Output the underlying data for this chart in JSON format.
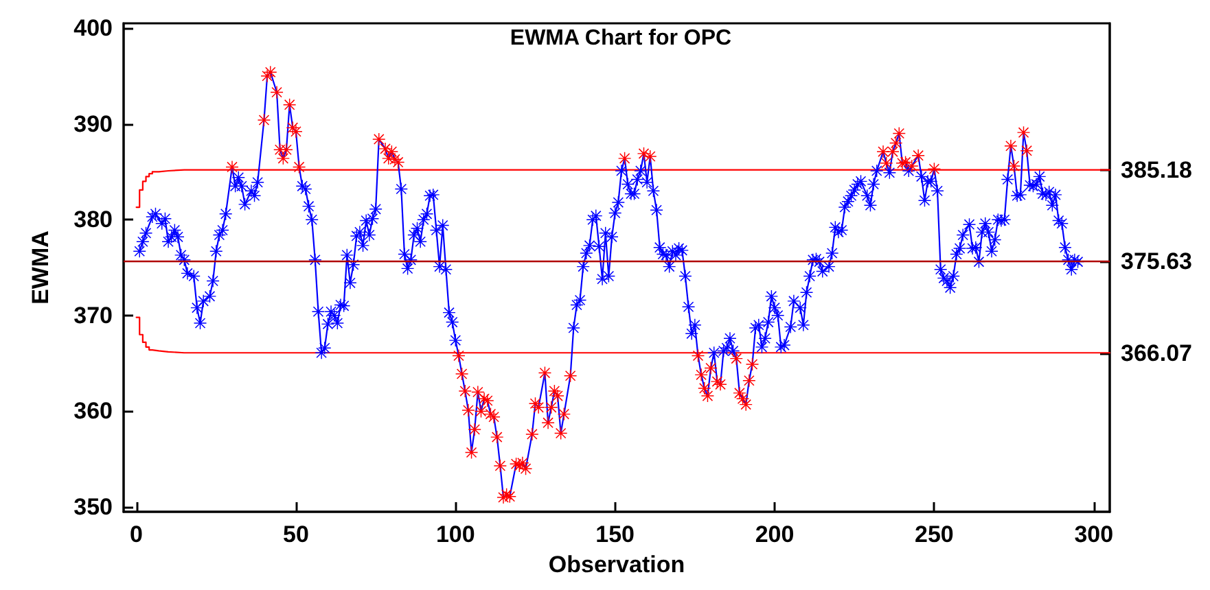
{
  "chart_data": {
    "type": "line",
    "title": "EWMA Chart for OPC",
    "xlabel": "Observation",
    "ylabel": "EWMA",
    "xlim": [
      -4,
      305
    ],
    "xticks": [
      0,
      50,
      100,
      150,
      200,
      250,
      300
    ],
    "ylim": [
      349.5,
      400.5
    ],
    "yticks": [
      350,
      360,
      370,
      380,
      390,
      400
    ],
    "y2lim": [
      349.5,
      400.5
    ],
    "y2ticks": [
      366.07,
      375.63,
      385.18
    ],
    "marker": "star",
    "line_style": "solid",
    "ref_lines": [
      {
        "axis": "y",
        "value": 375.63,
        "color": "#b00000",
        "line_style": "solid"
      }
    ],
    "series": [
      {
        "color": "#0000ff",
        "x": [
          1,
          2,
          3,
          5,
          6,
          8,
          9,
          10,
          11,
          12,
          13,
          14,
          15,
          16,
          18,
          19,
          20,
          21,
          23,
          24,
          25,
          26,
          27,
          28,
          30,
          31,
          32,
          33,
          34,
          36,
          37,
          38,
          40,
          41,
          42,
          44,
          45,
          46,
          47,
          48,
          49,
          50,
          51,
          52,
          53,
          54,
          55,
          56,
          57,
          58,
          59,
          60,
          61,
          62,
          63,
          64,
          65,
          66,
          67,
          68,
          69,
          70,
          71,
          72,
          73,
          74,
          75,
          76,
          78,
          79,
          80,
          81,
          82,
          83,
          84,
          85,
          86,
          87,
          88,
          89,
          90,
          91,
          92,
          93,
          94,
          95,
          96,
          97,
          98,
          99,
          100,
          101,
          102,
          103,
          104,
          105,
          106,
          107,
          108,
          109,
          110,
          111,
          112,
          113,
          114,
          115,
          116,
          117,
          119,
          120,
          121,
          122,
          124,
          125,
          126,
          128,
          129,
          130,
          131,
          132,
          133,
          134,
          136,
          137,
          138,
          139,
          140,
          141,
          142,
          143,
          144,
          145,
          146,
          147,
          148,
          149,
          150,
          151,
          152,
          153,
          154,
          155,
          156,
          157,
          158,
          159,
          160,
          161,
          162,
          163,
          164,
          165,
          166,
          167,
          168,
          169,
          170,
          171,
          172,
          173,
          174,
          175,
          176,
          177,
          178,
          179,
          180,
          181,
          182,
          183,
          184,
          185,
          186,
          187,
          188,
          189,
          190,
          191,
          192,
          193,
          194,
          195,
          196,
          197,
          198,
          199,
          200,
          201,
          202,
          203,
          205,
          206,
          208,
          209,
          210,
          211,
          212,
          213,
          214,
          215,
          217,
          218,
          219,
          220,
          221,
          222,
          223,
          224,
          225,
          226,
          227,
          229,
          230,
          231,
          232,
          234,
          235,
          236,
          237,
          238,
          239,
          240,
          241,
          242,
          243,
          245,
          246,
          247,
          248,
          249,
          250,
          251,
          252,
          253,
          254,
          255,
          256,
          257,
          258,
          259,
          261,
          262,
          263,
          264,
          265,
          266,
          267,
          268,
          269,
          270,
          271,
          272,
          273,
          274,
          275,
          276,
          277,
          278,
          279,
          280,
          281,
          282,
          283,
          284,
          285,
          286,
          287,
          288,
          289,
          290,
          291,
          292,
          293,
          294,
          295
        ],
        "values": [
          376.7,
          377.7,
          378.6,
          380.3,
          380.6,
          379.6,
          380.1,
          377.7,
          378.2,
          378.9,
          378.2,
          376.3,
          375.8,
          374.4,
          374.1,
          370.8,
          369.2,
          371.5,
          372.0,
          373.6,
          376.7,
          378.4,
          378.9,
          380.6,
          385.5,
          383.5,
          384.4,
          383.5,
          381.6,
          383.0,
          382.5,
          383.9,
          390.4,
          395.0,
          395.4,
          393.3,
          387.3,
          386.4,
          387.3,
          392.0,
          389.6,
          389.2,
          385.5,
          383.5,
          383.2,
          381.4,
          380.0,
          375.8,
          370.4,
          366.1,
          366.6,
          369.1,
          370.4,
          370.0,
          369.2,
          371.1,
          371.0,
          376.3,
          373.4,
          375.3,
          378.3,
          378.7,
          377.3,
          379.9,
          378.4,
          380.1,
          381.1,
          388.4,
          387.4,
          386.4,
          387.1,
          386.3,
          386.0,
          383.2,
          376.4,
          374.9,
          375.8,
          378.4,
          379.1,
          377.7,
          380.0,
          380.6,
          382.5,
          382.6,
          378.9,
          375.1,
          379.4,
          374.8,
          370.3,
          369.3,
          367.4,
          365.8,
          363.9,
          362.1,
          360.1,
          355.7,
          358.1,
          362.0,
          360.0,
          361.3,
          361.1,
          359.7,
          359.4,
          357.3,
          354.3,
          351.0,
          351.3,
          351.1,
          354.5,
          354.3,
          354.6,
          354.0,
          357.6,
          360.8,
          360.4,
          364.0,
          358.8,
          360.4,
          362.1,
          361.6,
          357.7,
          359.7,
          363.7,
          368.7,
          371.1,
          371.6,
          375.1,
          376.5,
          377.3,
          380.0,
          380.4,
          377.2,
          373.8,
          378.6,
          374.1,
          378.2,
          380.7,
          381.8,
          385.1,
          386.4,
          383.7,
          382.7,
          382.7,
          384.2,
          385.1,
          386.9,
          383.9,
          386.6,
          383.0,
          381.0,
          377.1,
          376.4,
          376.3,
          375.1,
          376.7,
          376.3,
          377.0,
          376.8,
          374.1,
          370.9,
          368.1,
          369.0,
          365.8,
          363.8,
          362.4,
          361.6,
          364.5,
          366.1,
          363.1,
          362.8,
          366.3,
          366.6,
          367.6,
          366.3,
          365.5,
          361.9,
          361.3,
          360.7,
          363.2,
          364.9,
          368.7,
          369.0,
          366.7,
          367.6,
          369.3,
          372.0,
          370.8,
          370.0,
          366.7,
          366.9,
          368.8,
          371.5,
          370.8,
          369.0,
          372.4,
          374.1,
          375.8,
          375.9,
          375.6,
          374.6,
          375.1,
          376.5,
          379.2,
          378.7,
          378.9,
          381.3,
          381.9,
          382.5,
          383.1,
          383.7,
          384.0,
          382.5,
          381.5,
          383.7,
          385.1,
          387.1,
          385.9,
          384.9,
          387.1,
          388.0,
          389.0,
          385.9,
          386.0,
          385.1,
          385.6,
          386.7,
          384.5,
          382.0,
          384.0,
          384.0,
          385.3,
          383.0,
          374.8,
          373.9,
          373.6,
          372.9,
          374.1,
          376.4,
          377.0,
          378.4,
          379.5,
          377.0,
          377.1,
          375.6,
          378.7,
          379.6,
          378.7,
          376.7,
          377.9,
          380.0,
          379.9,
          380.0,
          384.2,
          387.7,
          385.6,
          382.5,
          382.6,
          389.1,
          387.2,
          383.6,
          383.5,
          383.7,
          384.5,
          382.7,
          382.6,
          382.9,
          381.5,
          382.6,
          379.9,
          379.6,
          377.1,
          375.8,
          374.8,
          375.8,
          375.6
        ],
        "colors": [
          "#0000ff",
          "#0000ff",
          "#0000ff",
          "#0000ff",
          "#0000ff",
          "#0000ff",
          "#0000ff",
          "#0000ff",
          "#0000ff",
          "#0000ff",
          "#0000ff",
          "#0000ff",
          "#0000ff",
          "#0000ff",
          "#0000ff",
          "#0000ff",
          "#0000ff",
          "#0000ff",
          "#0000ff",
          "#0000ff",
          "#0000ff",
          "#0000ff",
          "#0000ff",
          "#0000ff",
          "#ff0000",
          "#0000ff",
          "#0000ff",
          "#0000ff",
          "#0000ff",
          "#0000ff",
          "#0000ff",
          "#0000ff",
          "#ff0000",
          "#ff0000",
          "#ff0000",
          "#ff0000",
          "#ff0000",
          "#ff0000",
          "#ff0000",
          "#ff0000",
          "#ff0000",
          "#ff0000",
          "#ff0000",
          "#0000ff",
          "#0000ff",
          "#0000ff",
          "#0000ff",
          "#0000ff",
          "#0000ff",
          "#0000ff",
          "#0000ff",
          "#0000ff",
          "#0000ff",
          "#0000ff",
          "#0000ff",
          "#0000ff",
          "#0000ff",
          "#0000ff",
          "#0000ff",
          "#0000ff",
          "#0000ff",
          "#0000ff",
          "#0000ff",
          "#0000ff",
          "#0000ff",
          "#0000ff",
          "#0000ff",
          "#ff0000",
          "#ff0000",
          "#ff0000",
          "#ff0000",
          "#ff0000",
          "#ff0000",
          "#0000ff",
          "#0000ff",
          "#0000ff",
          "#0000ff",
          "#0000ff",
          "#0000ff",
          "#0000ff",
          "#0000ff",
          "#0000ff",
          "#0000ff",
          "#0000ff",
          "#0000ff",
          "#0000ff",
          "#0000ff",
          "#0000ff",
          "#0000ff",
          "#0000ff",
          "#0000ff",
          "#ff0000",
          "#ff0000",
          "#ff0000",
          "#ff0000",
          "#ff0000",
          "#ff0000",
          "#ff0000",
          "#ff0000",
          "#ff0000",
          "#ff0000",
          "#ff0000",
          "#ff0000",
          "#ff0000",
          "#ff0000",
          "#ff0000",
          "#ff0000",
          "#ff0000",
          "#ff0000",
          "#ff0000",
          "#ff0000",
          "#ff0000",
          "#ff0000",
          "#ff0000",
          "#ff0000",
          "#ff0000",
          "#ff0000",
          "#ff0000",
          "#ff0000",
          "#ff0000",
          "#ff0000",
          "#ff0000",
          "#ff0000",
          "#0000ff",
          "#0000ff",
          "#0000ff",
          "#0000ff",
          "#0000ff",
          "#0000ff",
          "#0000ff",
          "#0000ff",
          "#0000ff",
          "#0000ff",
          "#0000ff",
          "#0000ff",
          "#0000ff",
          "#0000ff",
          "#0000ff",
          "#0000ff",
          "#ff0000",
          "#0000ff",
          "#0000ff",
          "#0000ff",
          "#0000ff",
          "#0000ff",
          "#ff0000",
          "#0000ff",
          "#ff0000",
          "#0000ff",
          "#0000ff",
          "#0000ff",
          "#0000ff",
          "#0000ff",
          "#0000ff",
          "#0000ff",
          "#0000ff",
          "#0000ff",
          "#0000ff",
          "#0000ff",
          "#0000ff",
          "#0000ff",
          "#0000ff",
          "#ff0000",
          "#ff0000",
          "#ff0000",
          "#ff0000",
          "#ff0000",
          "#0000ff",
          "#ff0000",
          "#ff0000",
          "#0000ff",
          "#0000ff",
          "#0000ff",
          "#0000ff",
          "#ff0000",
          "#ff0000",
          "#ff0000",
          "#ff0000",
          "#ff0000",
          "#ff0000",
          "#0000ff",
          "#0000ff",
          "#0000ff",
          "#0000ff",
          "#0000ff",
          "#0000ff",
          "#0000ff",
          "#0000ff",
          "#0000ff",
          "#0000ff",
          "#0000ff",
          "#0000ff",
          "#0000ff",
          "#0000ff",
          "#0000ff",
          "#0000ff",
          "#0000ff",
          "#0000ff",
          "#0000ff",
          "#0000ff",
          "#0000ff",
          "#0000ff",
          "#0000ff",
          "#0000ff",
          "#0000ff",
          "#0000ff",
          "#0000ff",
          "#0000ff",
          "#0000ff",
          "#0000ff",
          "#0000ff",
          "#0000ff",
          "#0000ff",
          "#0000ff",
          "#0000ff",
          "#ff0000",
          "#ff0000",
          "#0000ff",
          "#ff0000",
          "#ff0000",
          "#ff0000",
          "#ff0000",
          "#ff0000",
          "#0000ff",
          "#ff0000",
          "#ff0000",
          "#0000ff",
          "#0000ff",
          "#0000ff",
          "#0000ff",
          "#ff0000",
          "#0000ff",
          "#0000ff",
          "#0000ff",
          "#0000ff",
          "#0000ff",
          "#0000ff",
          "#0000ff",
          "#0000ff",
          "#0000ff",
          "#0000ff",
          "#0000ff",
          "#0000ff",
          "#0000ff",
          "#0000ff",
          "#0000ff",
          "#0000ff",
          "#0000ff",
          "#0000ff",
          "#0000ff",
          "#0000ff",
          "#0000ff",
          "#0000ff",
          "#ff0000",
          "#ff0000",
          "#0000ff",
          "#0000ff",
          "#ff0000",
          "#ff0000",
          "#0000ff",
          "#0000ff",
          "#0000ff",
          "#0000ff",
          "#0000ff",
          "#0000ff",
          "#0000ff",
          "#0000ff",
          "#0000ff",
          "#0000ff",
          "#0000ff",
          "#0000ff",
          "#0000ff",
          "#0000ff",
          "#0000ff",
          "#0000ff"
        ]
      },
      {
        "type": "step",
        "color": "#ff0000",
        "marker": "none",
        "x": [
          0,
          1,
          2,
          3,
          4,
          5,
          7,
          10,
          15,
          305
        ],
        "values": [
          381.3,
          383.1,
          384.0,
          384.5,
          384.8,
          385.0,
          385.1,
          385.2,
          385.2,
          385.2
        ]
      },
      {
        "type": "step",
        "color": "#ff0000",
        "marker": "none",
        "x": [
          0,
          1,
          2,
          3,
          4,
          5,
          7,
          10,
          15,
          305
        ],
        "values": [
          369.8,
          368.0,
          367.2,
          366.7,
          366.4,
          366.3,
          366.2,
          366.1,
          366.1,
          366.1
        ]
      }
    ]
  }
}
